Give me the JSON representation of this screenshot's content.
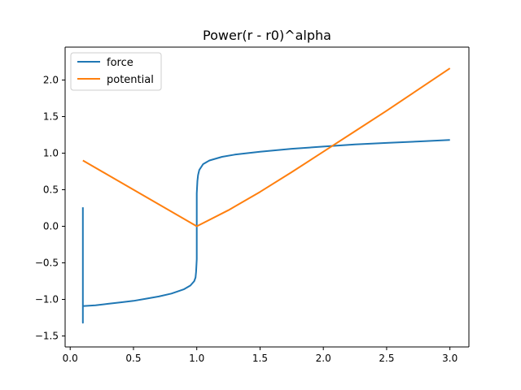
{
  "chart_data": {
    "type": "line",
    "title": "Power(r - r0)^alpha",
    "xlabel": "",
    "ylabel": "",
    "xlim": [
      -0.04,
      3.15
    ],
    "ylim": [
      -1.65,
      2.45
    ],
    "xticks": [
      0.0,
      0.5,
      1.0,
      1.5,
      2.0,
      2.5,
      3.0
    ],
    "xtick_labels": [
      "0.0",
      "0.5",
      "1.0",
      "1.5",
      "2.0",
      "2.5",
      "3.0"
    ],
    "yticks": [
      -1.5,
      -1.0,
      -0.5,
      0.0,
      0.5,
      1.0,
      1.5,
      2.0
    ],
    "ytick_labels": [
      "−1.5",
      "−1.0",
      "−0.5",
      "0.0",
      "0.5",
      "1.0",
      "1.5",
      "2.0"
    ],
    "grid": false,
    "legend_position": "top-left",
    "series": [
      {
        "name": "force",
        "color": "#1f77b4",
        "x": [
          0.1,
          0.1,
          0.1,
          0.1,
          0.11,
          0.2,
          0.3,
          0.4,
          0.5,
          0.6,
          0.7,
          0.8,
          0.9,
          0.95,
          0.98,
          0.99,
          0.995,
          1.0,
          1.0,
          1.005,
          1.01,
          1.02,
          1.05,
          1.1,
          1.2,
          1.3,
          1.5,
          1.75,
          2.0,
          2.25,
          2.5,
          2.75,
          3.0
        ],
        "y": [
          0.26,
          -1.32,
          -1.05,
          -1.09,
          -1.09,
          -1.08,
          -1.06,
          -1.04,
          -1.02,
          -0.99,
          -0.96,
          -0.92,
          -0.86,
          -0.81,
          -0.75,
          -0.7,
          -0.62,
          -0.45,
          0.45,
          0.62,
          0.7,
          0.77,
          0.85,
          0.9,
          0.95,
          0.98,
          1.02,
          1.06,
          1.09,
          1.12,
          1.14,
          1.16,
          1.18
        ]
      },
      {
        "name": "potential",
        "color": "#ff7f0e",
        "x": [
          0.1,
          0.3,
          0.5,
          0.7,
          0.9,
          1.0,
          1.25,
          1.5,
          1.75,
          2.0,
          2.25,
          2.5,
          2.75,
          3.0
        ],
        "y": [
          0.9,
          0.7,
          0.5,
          0.3,
          0.1,
          0.0,
          0.22,
          0.47,
          0.74,
          1.02,
          1.3,
          1.58,
          1.87,
          2.16
        ]
      }
    ]
  }
}
